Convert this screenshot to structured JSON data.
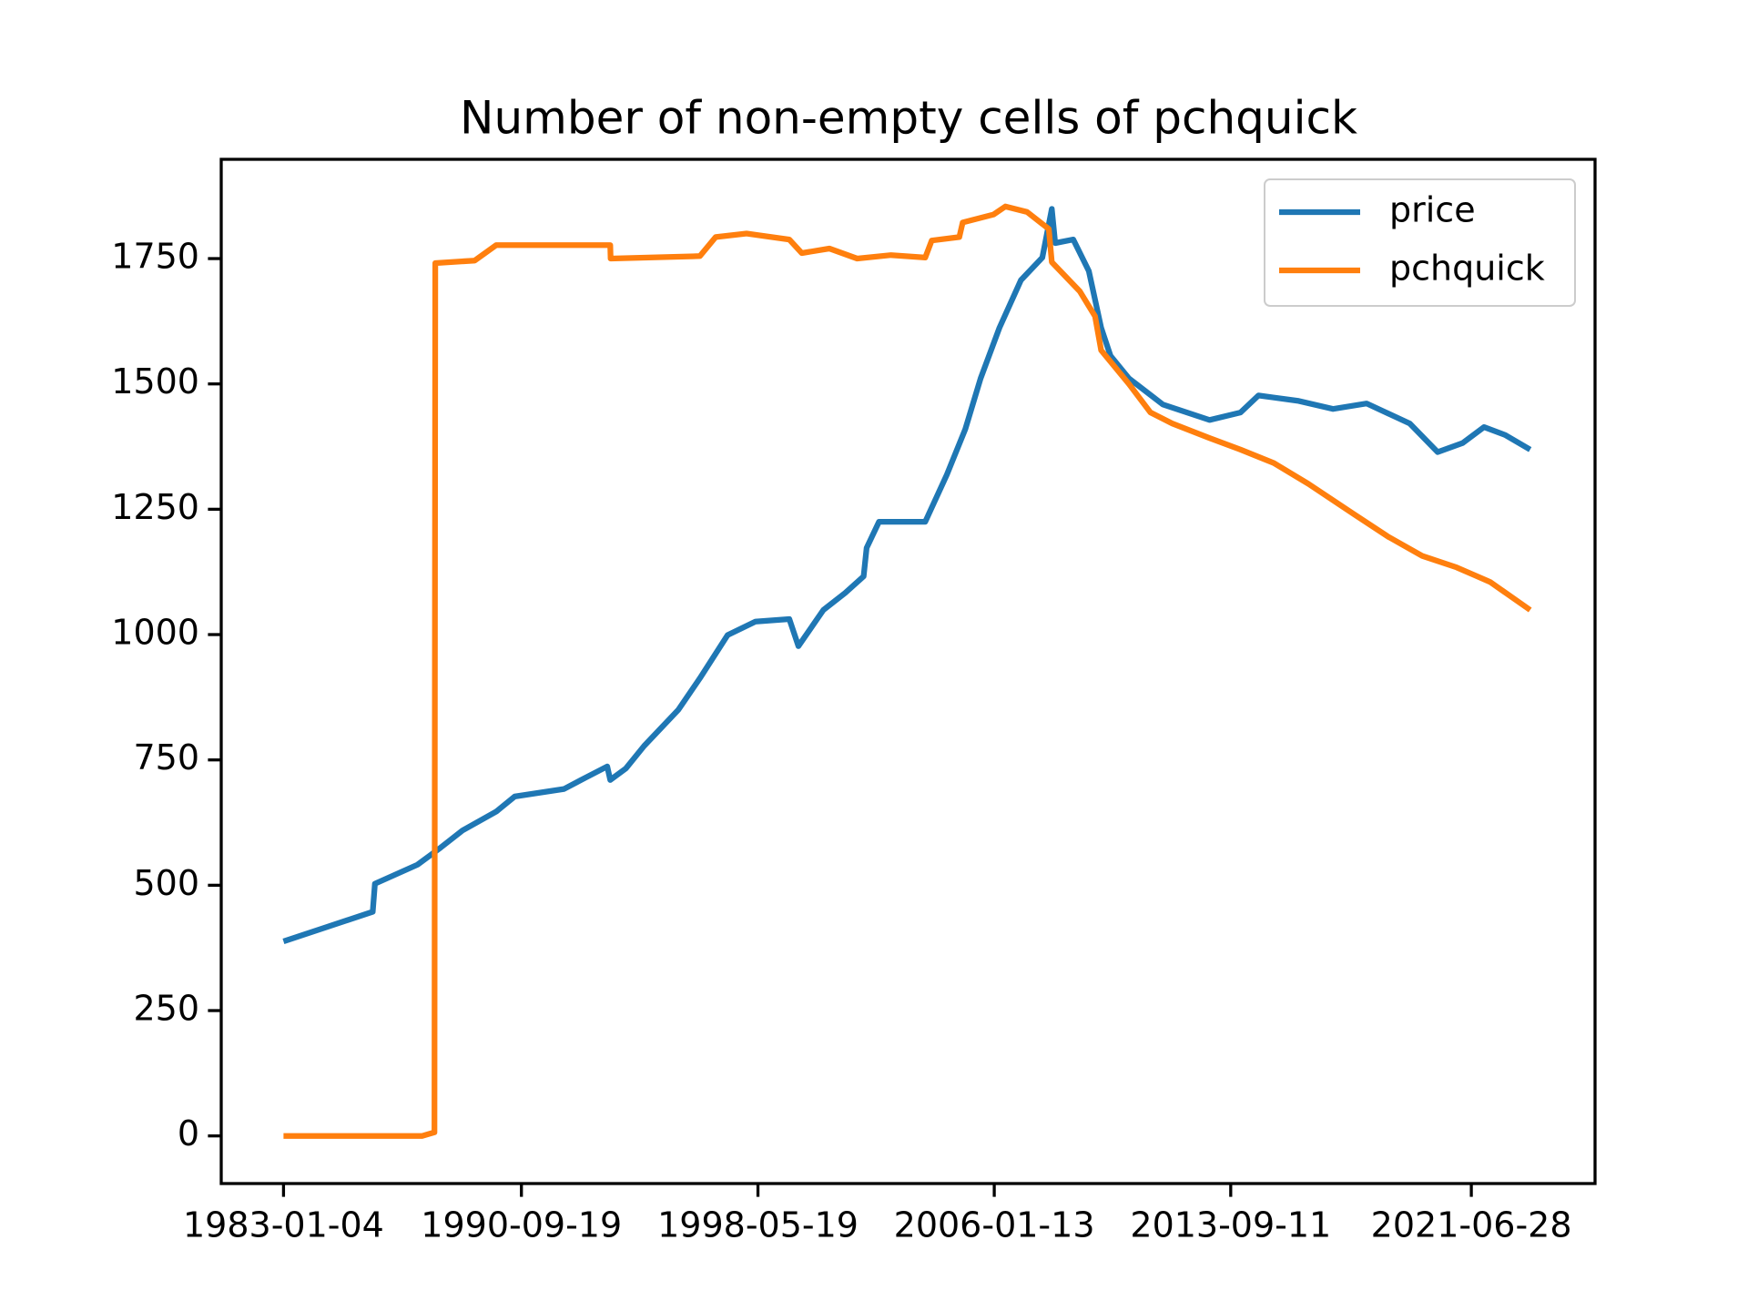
{
  "chart_data": {
    "type": "line",
    "title": "Number of non-empty cells of pchquick",
    "xlim": [
      "1980-12-28",
      "2025-07-01"
    ],
    "ylim": [
      -95,
      1948
    ],
    "xticks": [
      "1983-01-04",
      "1990-09-19",
      "1998-05-19",
      "2006-01-13",
      "2013-09-11",
      "2021-06-28"
    ],
    "yticks": [
      0,
      250,
      500,
      750,
      1000,
      1250,
      1500,
      1750
    ],
    "legend": "upper right",
    "series": [
      {
        "name": "price",
        "color": "#1f77b4",
        "x": [
          "1983-01-04",
          "1985-11-25",
          "1985-12-20",
          "1987-05-08",
          "1988-02-05",
          "1988-10-20",
          "1989-11-25",
          "1990-07-01",
          "1992-02-05",
          "1992-10-20",
          "1993-07-01",
          "1993-08-05",
          "1994-02-05",
          "1994-09-10",
          "1995-10-20",
          "1996-07-01",
          "1997-05-25",
          "1998-04-20",
          "1999-05-25",
          "1999-09-10",
          "2000-07-01",
          "2001-03-15",
          "2001-10-20",
          "2001-11-25",
          "2002-04-20",
          "2003-10-20",
          "2004-07-01",
          "2005-02-05",
          "2005-08-05",
          "2006-03-15",
          "2006-11-25",
          "2007-08-05",
          "2007-11-25",
          "2008-01-04",
          "2008-08-05",
          "2009-02-05",
          "2009-07-01",
          "2009-10-20",
          "2010-05-25",
          "2011-07-01",
          "2013-01-04",
          "2014-01-04",
          "2014-08-05",
          "2015-11-25",
          "2017-01-04",
          "2018-02-05",
          "2019-07-01",
          "2020-05-25",
          "2021-03-15",
          "2021-11-25",
          "2022-08-05",
          "2023-05-25"
        ],
        "values": [
          388,
          447,
          503,
          541,
          575,
          609,
          647,
          677,
          692,
          715,
          737,
          710,
          733,
          778,
          850,
          913,
          999,
          1026,
          1031,
          977,
          1049,
          1083,
          1116,
          1173,
          1225,
          1225,
          1319,
          1410,
          1511,
          1612,
          1707,
          1752,
          1849,
          1781,
          1788,
          1725,
          1612,
          1556,
          1511,
          1459,
          1428,
          1443,
          1477,
          1466,
          1450,
          1461,
          1421,
          1364,
          1382,
          1414,
          1398,
          1369
        ]
      },
      {
        "name": "pchquick",
        "color": "#ff7f0e",
        "x": [
          "1983-01-04",
          "1987-07-01",
          "1987-11-25",
          "1987-12-05",
          "1989-03-15",
          "1989-11-25",
          "1993-08-05",
          "1993-08-10",
          "1996-07-01",
          "1997-01-04",
          "1998-01-04",
          "1999-05-25",
          "1999-10-20",
          "2000-09-10",
          "2001-08-05",
          "2002-09-10",
          "2003-10-20",
          "2004-01-04",
          "2004-11-25",
          "2005-01-04",
          "2006-01-04",
          "2006-05-25",
          "2007-02-05",
          "2007-10-20",
          "2007-11-25",
          "2008-10-20",
          "2009-04-20",
          "2009-07-01",
          "2010-05-25",
          "2011-02-05",
          "2011-10-20",
          "2013-01-04",
          "2014-01-04",
          "2015-02-05",
          "2016-03-15",
          "2017-09-10",
          "2018-10-20",
          "2019-11-25",
          "2021-01-04",
          "2022-02-05",
          "2023-05-25"
        ],
        "values": [
          0,
          0,
          7,
          1741,
          1746,
          1777,
          1777,
          1750,
          1755,
          1793,
          1800,
          1788,
          1761,
          1770,
          1750,
          1757,
          1752,
          1786,
          1793,
          1822,
          1838,
          1854,
          1843,
          1809,
          1743,
          1685,
          1635,
          1567,
          1500,
          1443,
          1421,
          1392,
          1369,
          1342,
          1301,
          1240,
          1195,
          1157,
          1134,
          1105,
          1049
        ]
      }
    ]
  }
}
